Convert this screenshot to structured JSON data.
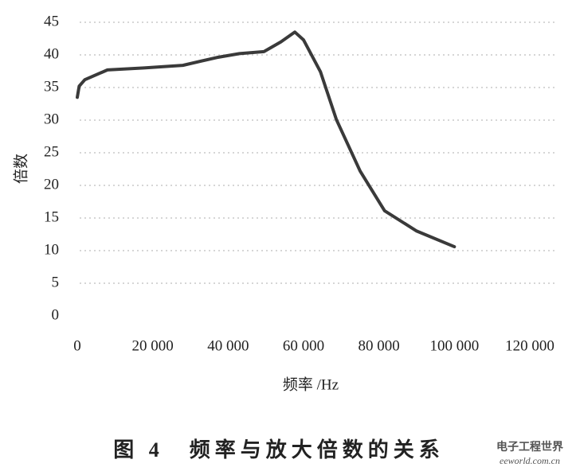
{
  "chart_data": {
    "type": "line",
    "caption": "图 4　频率与放大倍数的关系",
    "watermark": "电子工程世界",
    "watermark_url": "eeworld.com.cn",
    "xlabel": "频率 /Hz",
    "ylabel": "倍数",
    "x": [
      0,
      500,
      2000,
      8000,
      17700,
      28000,
      37000,
      43000,
      49500,
      54000,
      57700,
      60000,
      64500,
      68700,
      75000,
      81500,
      90000,
      100000
    ],
    "series": [
      {
        "name": "倍数",
        "color": "#3a3a3a",
        "values": [
          33.5,
          35.2,
          36.2,
          37.7,
          38,
          38.4,
          39.6,
          40.2,
          40.5,
          42,
          43.5,
          42.3,
          37.4,
          30.1,
          22.2,
          16.1,
          13,
          10.6
        ]
      }
    ],
    "xlim": [
      0,
      120000
    ],
    "xticks": [
      0,
      {
        "value": 20000,
        "label": "20 000"
      },
      {
        "value": 40000,
        "label": "40 000"
      },
      {
        "value": 60000,
        "label": "60 000"
      },
      {
        "value": 80000,
        "label": "80 000"
      },
      {
        "value": 100000,
        "label": "100 000"
      },
      {
        "value": 120000,
        "label": "120 000"
      }
    ],
    "ylim": [
      0,
      45
    ],
    "yticks": [
      0,
      5,
      10,
      15,
      20,
      25,
      30,
      35,
      40,
      45
    ],
    "grid": true
  }
}
